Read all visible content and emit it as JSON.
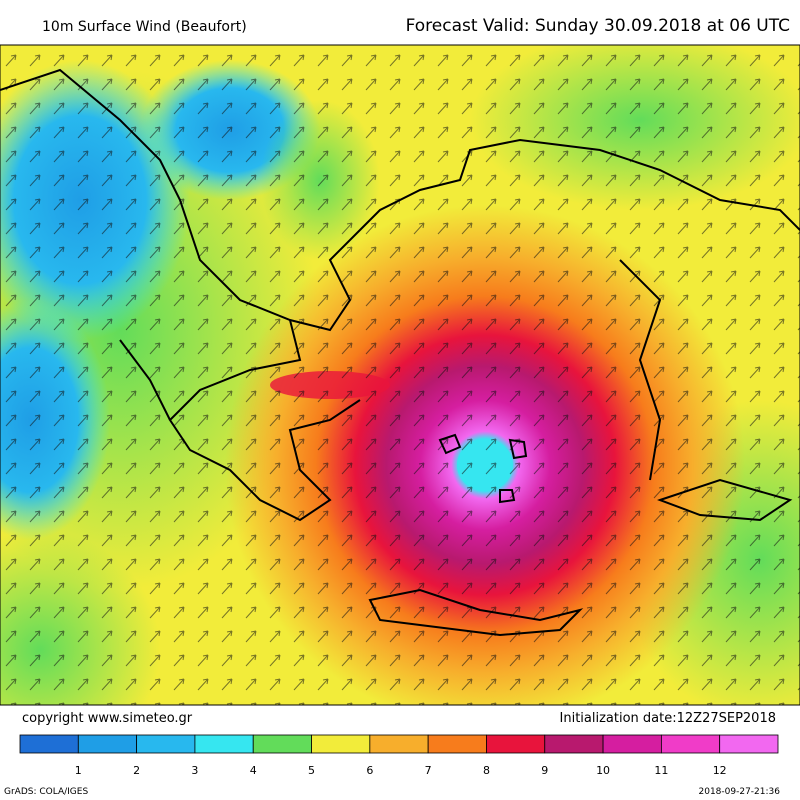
{
  "header": {
    "title": "10m Surface Wind (Beaufort)",
    "forecast": "Forecast Valid:  Sunday 30.09.2018 at 06 UTC"
  },
  "footer": {
    "copyright": "copyright www.simeteo.gr",
    "initialization": "Initialization date:12Z27SEP2018",
    "software": "GrADS: COLA/IGES",
    "timestamp": "2018-09-27-21:36"
  },
  "legend": {
    "colors": [
      "#1e6fd6",
      "#1f9ee6",
      "#28b8ee",
      "#36e6f0",
      "#62dc5a",
      "#f2ec3a",
      "#f7ae2c",
      "#f77c1c",
      "#e8143c",
      "#b8196e",
      "#d51ea0",
      "#f03cc8",
      "#f268f0"
    ],
    "labels": [
      1,
      2,
      3,
      4,
      5,
      6,
      7,
      8,
      9,
      10,
      11,
      12
    ]
  }
}
